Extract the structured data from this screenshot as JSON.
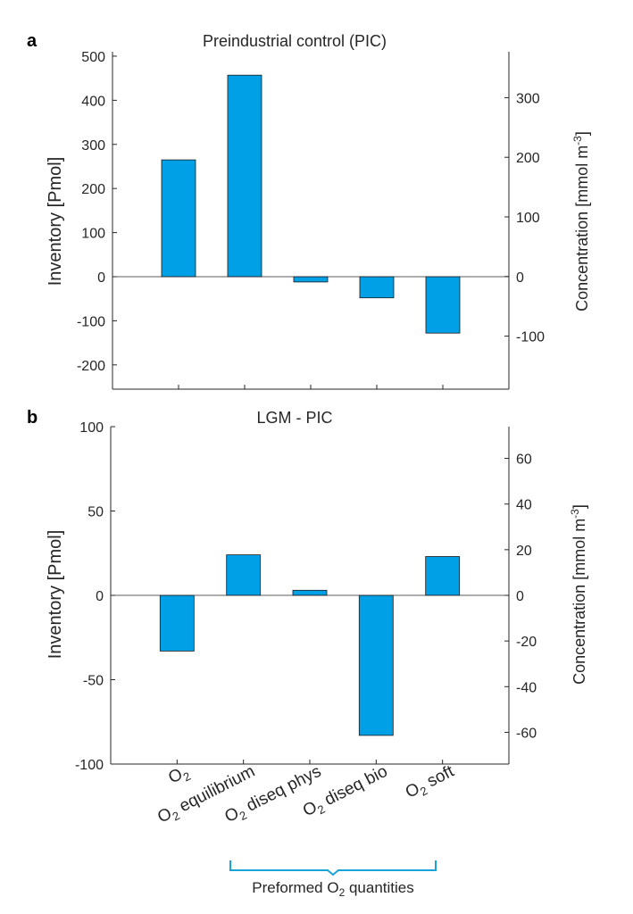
{
  "bar_color": "#00a0e6",
  "bracket_color": "#1aa3d9",
  "panels": [
    {
      "letter": "a",
      "title": "Preindustrial control (PIC)",
      "ylabel": "Inventory [Pmol]",
      "ylabel_right": "Concentration [mmol m",
      "ylabel_right_sup": "-3",
      "ylabel_right_end": "]"
    },
    {
      "letter": "b",
      "title": "LGM - PIC",
      "ylabel": "Inventory [Pmol]",
      "ylabel_right": "Concentration [mmol m",
      "ylabel_right_sup": "-3",
      "ylabel_right_end": "]"
    }
  ],
  "categories": [
    {
      "pre": "O",
      "sub": "2",
      "post": ""
    },
    {
      "pre": "O",
      "sub": "2",
      "post": " equilibrium"
    },
    {
      "pre": "O",
      "sub": "2",
      "post": " diseq phys"
    },
    {
      "pre": "O",
      "sub": "2",
      "post": " diseq bio"
    },
    {
      "pre": "O",
      "sub": "2",
      "post": " soft"
    }
  ],
  "bracket": {
    "pre": "Preformed O",
    "sub": "2",
    "post": " quantities"
  },
  "chart_data": [
    {
      "type": "bar",
      "title": "Preindustrial control (PIC)",
      "categories": [
        "O2",
        "O2 equilibrium",
        "O2 diseq phys",
        "O2 diseq bio",
        "O2 soft"
      ],
      "values": [
        265,
        457,
        -12,
        -48,
        -128
      ],
      "ylabel": "Inventory [Pmol]",
      "ylim": [
        -255,
        510
      ],
      "yticks": [
        500,
        400,
        300,
        200,
        100,
        0,
        -100,
        -200
      ],
      "ylabel_right": "Concentration [mmol m-3]",
      "ylim_right": [
        -189,
        377
      ],
      "yticks_right": [
        300,
        200,
        100,
        0,
        -100
      ],
      "grid": false
    },
    {
      "type": "bar",
      "title": "LGM - PIC",
      "categories": [
        "O2",
        "O2 equilibrium",
        "O2 diseq phys",
        "O2 diseq bio",
        "O2 soft"
      ],
      "values": [
        -33,
        24,
        3,
        -83,
        23
      ],
      "ylabel": "Inventory [Pmol]",
      "ylim": [
        -100,
        100
      ],
      "yticks": [
        100,
        50,
        0,
        -50,
        -100
      ],
      "ylabel_right": "Concentration [mmol m-3]",
      "ylim_right": [
        -73.9,
        73.9
      ],
      "yticks_right": [
        60,
        40,
        20,
        0,
        -20,
        -40,
        -60
      ],
      "grid": false
    }
  ]
}
